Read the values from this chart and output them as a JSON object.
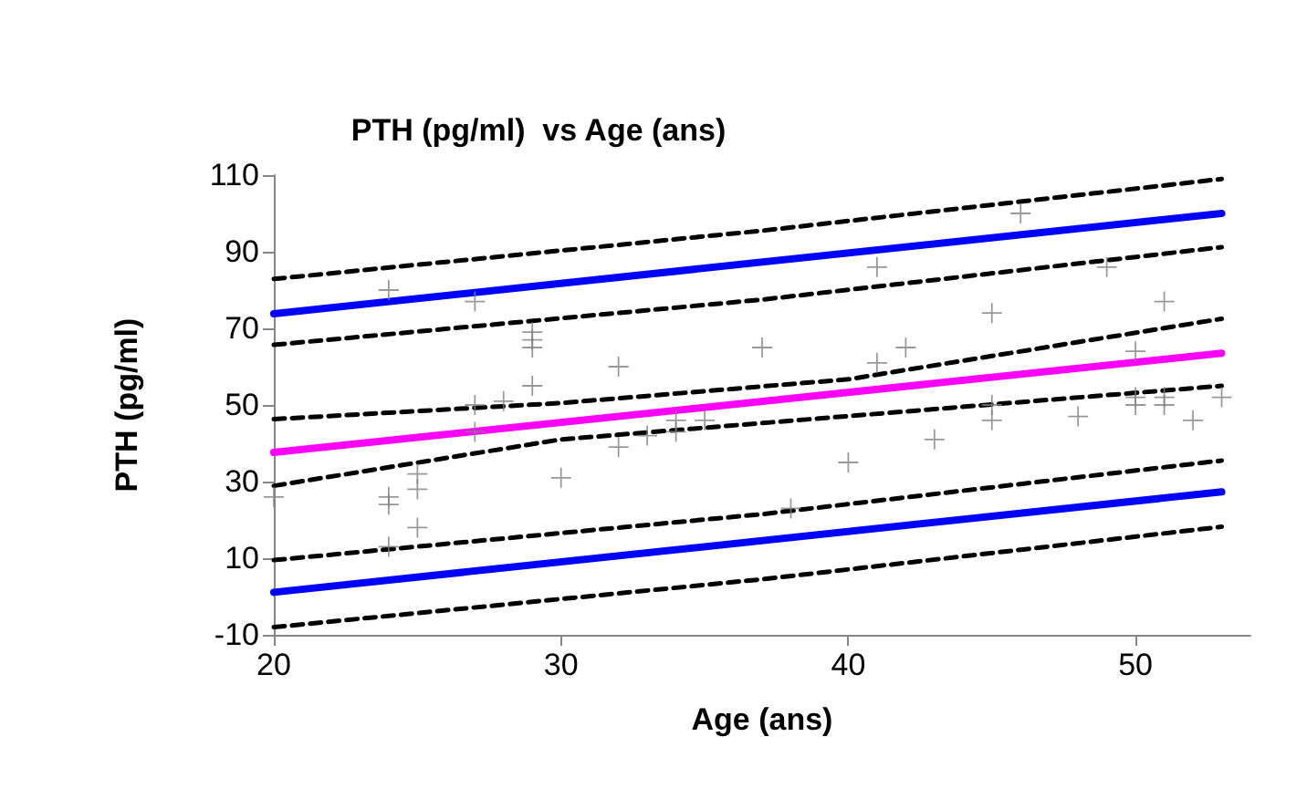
{
  "chart_data": {
    "type": "line",
    "title": "PTH (pg/ml)  vs Age (ans)",
    "xlabel": "Age (ans)",
    "ylabel": "PTH (pg/ml)",
    "xlim": [
      20,
      54
    ],
    "xticks": [
      20,
      30,
      40,
      50
    ],
    "ylim": [
      -10,
      110
    ],
    "yticks": [
      -10,
      10,
      30,
      50,
      70,
      90,
      110
    ],
    "grid": false,
    "series": [
      {
        "type": "scatter",
        "marker": "cross",
        "color": "#808080",
        "x": [
          20,
          24,
          24,
          24,
          24,
          25,
          25,
          25,
          27,
          27,
          27,
          28,
          29,
          29,
          29,
          29,
          30,
          32,
          32,
          33,
          34,
          34,
          35,
          37,
          38,
          40,
          41,
          41,
          42,
          43,
          45,
          45,
          45,
          46,
          48,
          49,
          50,
          50,
          50,
          51,
          51,
          51,
          52,
          53
        ],
        "values": [
          26,
          80,
          26,
          24,
          13,
          32,
          28,
          18,
          77,
          50,
          43,
          51,
          69,
          67,
          65,
          55,
          31,
          60,
          39,
          42,
          46,
          43,
          46,
          65,
          23,
          35,
          86,
          61,
          65,
          41,
          74,
          50,
          46,
          100,
          47,
          86,
          64,
          52,
          50,
          77,
          52,
          50,
          46,
          52
        ]
      },
      {
        "marker": "none",
        "line_style": "solid",
        "color": "#ff00ff",
        "x": [
          20,
          53
        ],
        "values": [
          37.6,
          63.5
        ]
      },
      {
        "marker": "none",
        "line_style": "solid",
        "color": "#0000ff",
        "x": [
          20,
          53
        ],
        "values": [
          73.8,
          100
        ]
      },
      {
        "marker": "none",
        "line_style": "solid",
        "color": "#0000ff",
        "x": [
          20,
          53
        ],
        "values": [
          1.1,
          27.3
        ]
      },
      {
        "marker": "none",
        "line_style": "dashed",
        "color": "#000000",
        "x": [
          20,
          37,
          53
        ],
        "values": [
          82.9,
          95.5,
          109
        ]
      },
      {
        "marker": "none",
        "line_style": "dashed",
        "color": "#000000",
        "x": [
          20,
          37,
          53
        ],
        "values": [
          65.7,
          77.5,
          91.2
        ]
      },
      {
        "marker": "none",
        "line_style": "dashed",
        "color": "#000000",
        "x": [
          20,
          30,
          40,
          53
        ],
        "values": [
          46.3,
          50.5,
          56.7,
          72.5
        ]
      },
      {
        "marker": "none",
        "line_style": "dashed",
        "color": "#000000",
        "x": [
          20,
          30,
          40,
          53
        ],
        "values": [
          28.9,
          41,
          47.1,
          55
        ]
      },
      {
        "marker": "none",
        "line_style": "dashed",
        "color": "#000000",
        "x": [
          20,
          37,
          53
        ],
        "values": [
          9.5,
          21.5,
          35.5
        ]
      },
      {
        "marker": "none",
        "line_style": "dashed",
        "color": "#000000",
        "x": [
          20,
          37,
          53
        ],
        "values": [
          -8,
          4.5,
          18.2
        ]
      }
    ]
  }
}
